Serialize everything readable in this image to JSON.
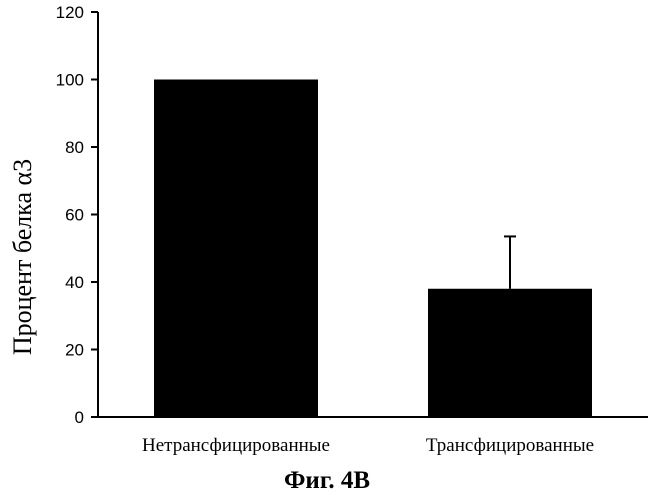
{
  "chart_data": {
    "type": "bar",
    "categories": [
      "Нетрансфицированные",
      "Трансфицированные"
    ],
    "values": [
      100,
      38
    ],
    "error_upper": [
      0,
      15.5
    ],
    "ylabel": "Процент белка α3",
    "xlabel": "",
    "ylim": [
      0,
      120
    ],
    "yticks": [
      "0",
      "20",
      "40",
      "60",
      "80",
      "100",
      "120"
    ],
    "grid": false,
    "bar_color": "#000000"
  },
  "caption": "Фиг. 4В"
}
